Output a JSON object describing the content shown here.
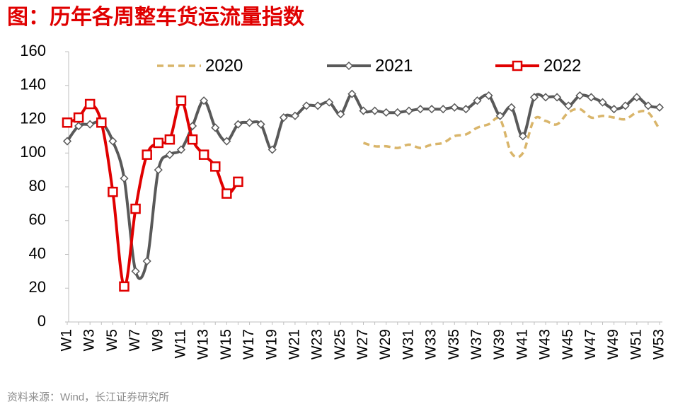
{
  "chart_data": {
    "type": "line",
    "title": "图：历年各周整车货运流量指数",
    "source": "资料来源：Wind，长江证券研究所",
    "categories": [
      "W1",
      null,
      "W3",
      null,
      "W5",
      null,
      "W7",
      null,
      "W9",
      null,
      "W11",
      null,
      "W13",
      null,
      "W15",
      null,
      "W17",
      null,
      "W19",
      null,
      "W21",
      null,
      "W23",
      null,
      "W25",
      null,
      "W27",
      null,
      "W29",
      null,
      "W31",
      null,
      "W33",
      null,
      "W35",
      null,
      "W37",
      null,
      "W39",
      null,
      "W41",
      null,
      "W43",
      null,
      "W45",
      null,
      "W47",
      null,
      "W49",
      null,
      "W51",
      null,
      "W53"
    ],
    "series": [
      {
        "name": "2020",
        "color": "#d9b56a",
        "style": "dashed",
        "values": [
          null,
          null,
          null,
          null,
          null,
          null,
          null,
          null,
          null,
          null,
          null,
          null,
          null,
          null,
          null,
          null,
          null,
          null,
          null,
          null,
          null,
          null,
          null,
          null,
          null,
          null,
          106,
          104,
          104,
          103,
          105,
          103,
          105,
          106,
          110,
          111,
          115,
          117,
          120,
          100,
          100,
          120,
          119,
          117,
          124,
          126,
          121,
          122,
          121,
          120,
          124,
          124,
          114
        ]
      },
      {
        "name": "2021",
        "color": "#595959",
        "marker": "diamond",
        "values": [
          107,
          116,
          117,
          118,
          107,
          85,
          30,
          36,
          90,
          99,
          102,
          116,
          131,
          115,
          107,
          117,
          118,
          117,
          102,
          121,
          122,
          128,
          128,
          130,
          123,
          135,
          125,
          125,
          124,
          124,
          125,
          126,
          126,
          126,
          127,
          126,
          131,
          134,
          122,
          127,
          110,
          133,
          133,
          133,
          128,
          134,
          133,
          130,
          126,
          128,
          133,
          128,
          127
        ]
      },
      {
        "name": "2022",
        "color": "#e00000",
        "marker": "square",
        "values": [
          118,
          121,
          129,
          118,
          77,
          21,
          67,
          99,
          106,
          108,
          131,
          108,
          99,
          92,
          76,
          83,
          null,
          null,
          null,
          null,
          null,
          null,
          null,
          null,
          null,
          null,
          null,
          null,
          null,
          null,
          null,
          null,
          null,
          null,
          null,
          null,
          null,
          null,
          null,
          null,
          null,
          null,
          null,
          null,
          null,
          null,
          null,
          null,
          null,
          null,
          null,
          null,
          null
        ]
      }
    ],
    "ylim": [
      0,
      160
    ],
    "yticks": [
      0,
      20,
      40,
      60,
      80,
      100,
      120,
      140,
      160
    ],
    "legend": "top"
  }
}
